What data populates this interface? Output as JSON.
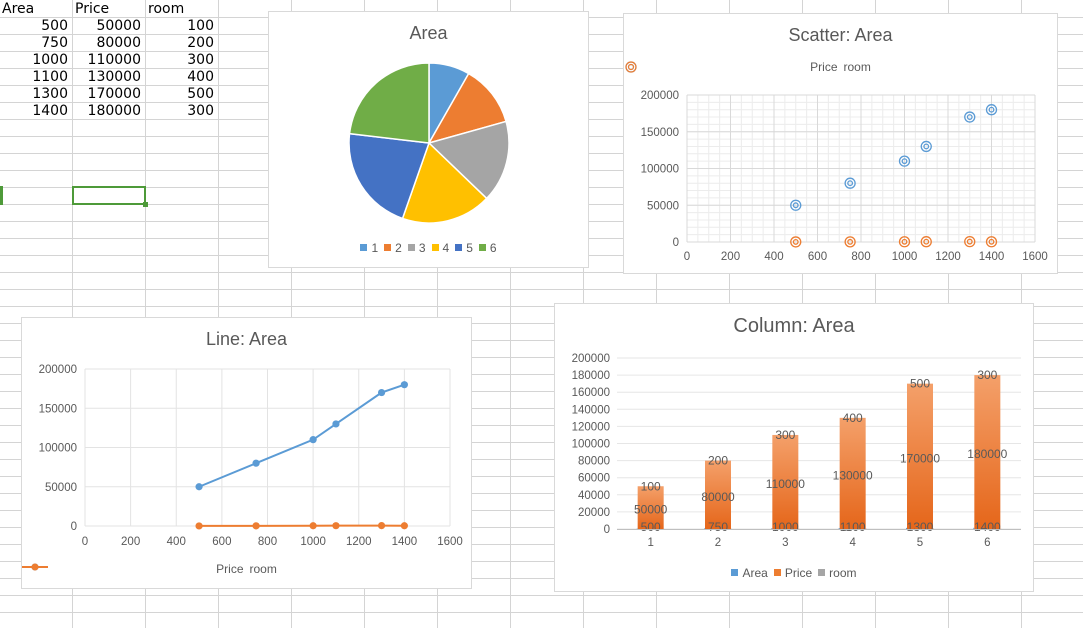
{
  "sheet": {
    "headers": [
      "Area",
      "Price",
      "room"
    ],
    "rows": [
      {
        "area": "500",
        "price": "50000",
        "room": "100"
      },
      {
        "area": "750",
        "price": "80000",
        "room": "200"
      },
      {
        "area": "1000",
        "price": "110000",
        "room": "300"
      },
      {
        "area": "1100",
        "price": "130000",
        "room": "400"
      },
      {
        "area": "1300",
        "price": "170000",
        "room": "500"
      },
      {
        "area": "1400",
        "price": "180000",
        "room": "300"
      }
    ]
  },
  "colors": {
    "grid": "#d4d4d4",
    "selection": "#4e9a39",
    "blue": "#5b9bd5",
    "orange": "#ed7d31",
    "gray": "#a5a5a5",
    "yellow": "#ffc000",
    "darkblue": "#4472c4",
    "green": "#70ad47"
  },
  "chart_data": [
    {
      "type": "pie",
      "title": "Area",
      "categories": [
        "1",
        "2",
        "3",
        "4",
        "5",
        "6"
      ],
      "values": [
        500,
        750,
        1000,
        1100,
        1300,
        1400
      ],
      "legend": "bottom"
    },
    {
      "type": "scatter",
      "title": "Scatter: Area",
      "x": [
        500,
        750,
        1000,
        1100,
        1300,
        1400
      ],
      "series": [
        {
          "name": "Price",
          "values": [
            50000,
            80000,
            110000,
            130000,
            170000,
            180000
          ]
        },
        {
          "name": "room",
          "values": [
            100,
            200,
            300,
            400,
            500,
            300
          ]
        }
      ],
      "xlim": [
        0,
        1600
      ],
      "ylim": [
        0,
        200000
      ],
      "xticks": [
        "0",
        "200",
        "400",
        "600",
        "800",
        "1000",
        "1200",
        "1400",
        "1600"
      ],
      "yticks": [
        "0",
        "50000",
        "100000",
        "150000",
        "200000"
      ],
      "grid": true,
      "legend": "top"
    },
    {
      "type": "line",
      "title": "Line: Area",
      "x": [
        500,
        750,
        1000,
        1100,
        1300,
        1400
      ],
      "series": [
        {
          "name": "Price",
          "values": [
            50000,
            80000,
            110000,
            130000,
            170000,
            180000
          ]
        },
        {
          "name": "room",
          "values": [
            100,
            200,
            300,
            400,
            500,
            300
          ]
        }
      ],
      "xlim": [
        0,
        1600
      ],
      "ylim": [
        0,
        200000
      ],
      "xticks": [
        "0",
        "200",
        "400",
        "600",
        "800",
        "1000",
        "1200",
        "1400",
        "1600"
      ],
      "yticks": [
        "0",
        "50000",
        "100000",
        "150000",
        "200000"
      ],
      "grid": true,
      "legend": "bottom"
    },
    {
      "type": "bar",
      "title": "Column: Area",
      "categories": [
        "1",
        "2",
        "3",
        "4",
        "5",
        "6"
      ],
      "series": [
        {
          "name": "Area",
          "values": [
            500,
            750,
            1000,
            1100,
            1300,
            1400
          ]
        },
        {
          "name": "Price",
          "values": [
            50000,
            80000,
            110000,
            130000,
            170000,
            180000
          ]
        },
        {
          "name": "room",
          "values": [
            100,
            200,
            300,
            400,
            500,
            300
          ]
        }
      ],
      "ylim": [
        0,
        200000
      ],
      "yticks": [
        "0",
        "20000",
        "40000",
        "60000",
        "80000",
        "100000",
        "120000",
        "140000",
        "160000",
        "180000",
        "200000"
      ],
      "grid": true,
      "legend": "bottom"
    }
  ]
}
